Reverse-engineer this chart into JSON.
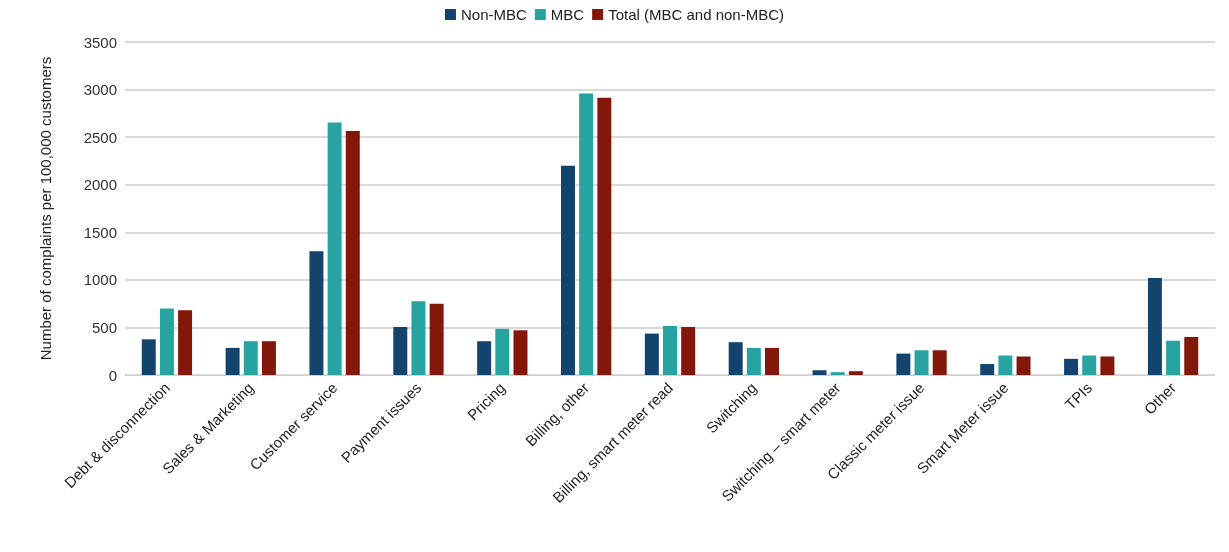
{
  "chart_data": {
    "type": "bar",
    "ylabel": "Number of complaints per 100,000 customers",
    "categories": [
      "Debt & disconnection",
      "Sales & Marketing",
      "Customer service",
      "Payment issues",
      "Pricing",
      "Billing, other",
      "Billing, smart meter read",
      "Switching",
      "Switching – smart meter",
      "Classic meter issue",
      "Smart Meter issue",
      "TPIs",
      "Other"
    ],
    "series": [
      {
        "name": "Non-MBC",
        "color": "#13446e",
        "values": [
          375,
          285,
          1300,
          505,
          355,
          2200,
          435,
          345,
          50,
          225,
          115,
          170,
          1020
        ]
      },
      {
        "name": "MBC",
        "color": "#27a4a1",
        "values": [
          700,
          355,
          2655,
          775,
          485,
          2960,
          515,
          285,
          30,
          260,
          205,
          205,
          360
        ]
      },
      {
        "name": "Total (MBC and non-MBC)",
        "color": "#831709",
        "values": [
          680,
          355,
          2565,
          750,
          470,
          2915,
          505,
          285,
          40,
          260,
          195,
          195,
          400
        ]
      }
    ],
    "ylim": [
      0,
      3500
    ],
    "yticks": [
      0,
      500,
      1000,
      1500,
      2000,
      2500,
      3000,
      3500
    ],
    "grid": "y",
    "legend": "top"
  }
}
